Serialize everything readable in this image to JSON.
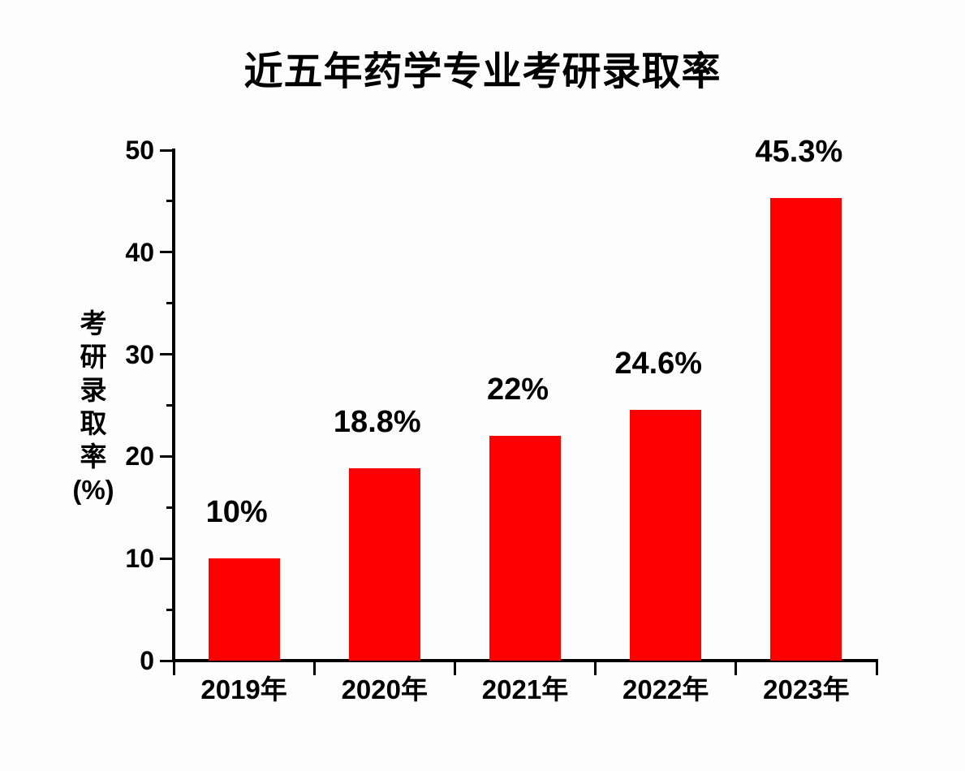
{
  "chart_data": {
    "type": "bar",
    "title": "近五年药学专业考研录取率",
    "ylabel": "考研录取率",
    "ylabel_unit": "(%)",
    "xlabel": "",
    "categories": [
      "2019年",
      "2020年",
      "2021年",
      "2022年",
      "2023年"
    ],
    "values": [
      10,
      18.8,
      22,
      24.6,
      45.3
    ],
    "bar_labels": [
      "10%",
      "18.8%",
      "22%",
      "24.6%",
      "45.3%"
    ],
    "ylim": [
      0,
      50
    ],
    "yticks_major": [
      0,
      10,
      20,
      30,
      40,
      50
    ],
    "yticks_minor": [
      5,
      15,
      25,
      35,
      45
    ],
    "grid": false,
    "legend": false,
    "colors": {
      "bar": "#ff0000",
      "axis": "#000000",
      "text": "#000000",
      "background": "#fdfdfd"
    }
  }
}
